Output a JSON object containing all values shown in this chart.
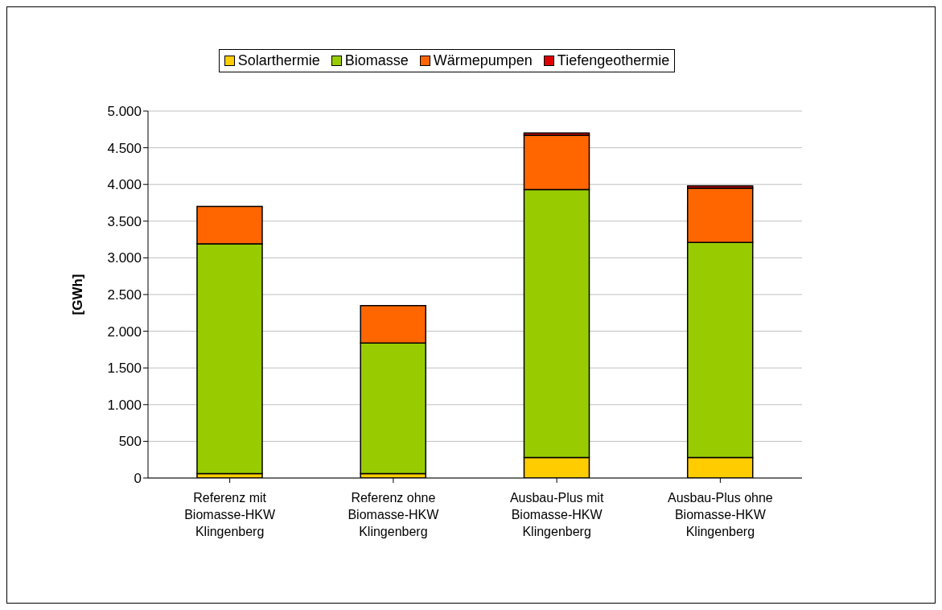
{
  "chart_data": {
    "type": "bar",
    "stacked": true,
    "ylabel": "[GWh]",
    "categories": [
      "Referenz mit\nBiomasse-HKW\nKlingenberg",
      "Referenz ohne\nBiomasse-HKW\nKlingenberg",
      "Ausbau-Plus mit\nBiomasse-HKW\nKlingenberg",
      "Ausbau-Plus ohne\nBiomasse-HKW\nKlingenberg"
    ],
    "series": [
      {
        "name": "Solarthermie",
        "color": "#ffcc00",
        "values": [
          60,
          60,
          280,
          280
        ]
      },
      {
        "name": "Biomasse",
        "color": "#99cc00",
        "values": [
          3130,
          1780,
          3650,
          2930
        ]
      },
      {
        "name": "Wärmepumpen",
        "color": "#ff6600",
        "values": [
          510,
          510,
          740,
          740
        ]
      },
      {
        "name": "Tiefengeothermie",
        "color": "#dd0000",
        "values": [
          0,
          0,
          30,
          30
        ]
      }
    ],
    "ylim": [
      0,
      5000
    ],
    "yticks": [
      {
        "value": 0,
        "label": "0"
      },
      {
        "value": 500,
        "label": "500"
      },
      {
        "value": 1000,
        "label": "1.000"
      },
      {
        "value": 1500,
        "label": "1.500"
      },
      {
        "value": 2000,
        "label": "2.000"
      },
      {
        "value": 2500,
        "label": "2.500"
      },
      {
        "value": 3000,
        "label": "3.000"
      },
      {
        "value": 3500,
        "label": "3.500"
      },
      {
        "value": 4000,
        "label": "4.000"
      },
      {
        "value": 4500,
        "label": "4.500"
      },
      {
        "value": 5000,
        "label": "5.000"
      }
    ],
    "grid": "y",
    "legend": "top"
  }
}
